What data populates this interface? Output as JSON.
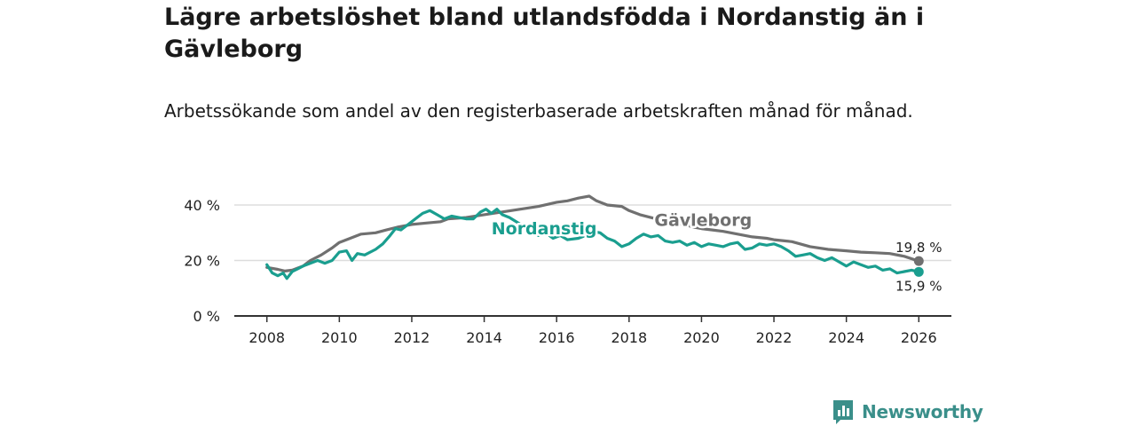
{
  "title": "Lägre arbetslöshet bland utlandsfödda i Nordanstig än i Gävleborg",
  "subtitle": "Arbetssökande som andel av den registerbaserade arbetskraften månad för månad.",
  "brand": "Newsworthy",
  "colors": {
    "nordanstig": "#1a9e8f",
    "gavleborg": "#707070",
    "axis": "#333333",
    "grid": "#dddddd",
    "brand": "#3a8f8a"
  },
  "chart_data": {
    "type": "line",
    "title": "Lägre arbetslöshet bland utlandsfödda i Nordanstig än i Gävleborg",
    "subtitle": "Arbetssökande som andel av den registerbaserade arbetskraften månad för månad.",
    "xlabel": "",
    "ylabel": "",
    "xlim": [
      2007.1,
      2026.9
    ],
    "ylim": [
      0,
      40
    ],
    "y_ticks": [
      0,
      20,
      40
    ],
    "y_tick_labels": [
      "0 %",
      "20 %",
      "40 %"
    ],
    "x_ticks": [
      2008,
      2010,
      2012,
      2014,
      2016,
      2018,
      2020,
      2022,
      2024,
      2026
    ],
    "x_tick_labels": [
      "2008",
      "2010",
      "2012",
      "2014",
      "2016",
      "2018",
      "2020",
      "2022",
      "2024",
      "2026"
    ],
    "grid": true,
    "series": [
      {
        "name": "Gävleborg",
        "color": "#707070",
        "end_label": "19,8 %",
        "points": [
          [
            2008,
            17.5
          ],
          [
            2008.3,
            16.8
          ],
          [
            2008.5,
            16.2
          ],
          [
            2008.7,
            16.5
          ],
          [
            2009,
            18
          ],
          [
            2009.2,
            20
          ],
          [
            2009.5,
            22
          ],
          [
            2009.8,
            24.5
          ],
          [
            2010,
            26.5
          ],
          [
            2010.3,
            28
          ],
          [
            2010.6,
            29.5
          ],
          [
            2011,
            30
          ],
          [
            2011.3,
            31
          ],
          [
            2011.6,
            32
          ],
          [
            2012,
            33
          ],
          [
            2012.4,
            33.5
          ],
          [
            2012.8,
            34
          ],
          [
            2013,
            35
          ],
          [
            2013.5,
            35.5
          ],
          [
            2014,
            36.5
          ],
          [
            2014.5,
            37.5
          ],
          [
            2015,
            38.5
          ],
          [
            2015.5,
            39.5
          ],
          [
            2016,
            41
          ],
          [
            2016.3,
            41.5
          ],
          [
            2016.6,
            42.5
          ],
          [
            2016.9,
            43.2
          ],
          [
            2017.1,
            41.5
          ],
          [
            2017.4,
            40
          ],
          [
            2017.8,
            39.5
          ],
          [
            2018,
            38
          ],
          [
            2018.3,
            36.5
          ],
          [
            2018.6,
            35.5
          ],
          [
            2018.9,
            34.5
          ],
          [
            2019.2,
            33.5
          ],
          [
            2019.5,
            33
          ],
          [
            2019.8,
            32
          ],
          [
            2020,
            31.5
          ],
          [
            2020.3,
            31
          ],
          [
            2020.6,
            30.5
          ],
          [
            2021,
            29.5
          ],
          [
            2021.4,
            28.5
          ],
          [
            2021.8,
            28
          ],
          [
            2022,
            27.5
          ],
          [
            2022.5,
            26.8
          ],
          [
            2023,
            25
          ],
          [
            2023.5,
            24
          ],
          [
            2024,
            23.5
          ],
          [
            2024.4,
            23
          ],
          [
            2024.8,
            22.8
          ],
          [
            2025.2,
            22.5
          ],
          [
            2025.6,
            21.5
          ],
          [
            2025.9,
            20.2
          ],
          [
            2026,
            19.8
          ]
        ]
      },
      {
        "name": "Nordanstig",
        "color": "#1a9e8f",
        "end_label": "15,9 %",
        "points": [
          [
            2008,
            18.5
          ],
          [
            2008.15,
            15.5
          ],
          [
            2008.3,
            14.5
          ],
          [
            2008.45,
            15.5
          ],
          [
            2008.55,
            13.5
          ],
          [
            2008.7,
            16
          ],
          [
            2008.85,
            17
          ],
          [
            2009,
            18
          ],
          [
            2009.2,
            19
          ],
          [
            2009.4,
            20
          ],
          [
            2009.6,
            19
          ],
          [
            2009.8,
            20
          ],
          [
            2010,
            23
          ],
          [
            2010.2,
            23.5
          ],
          [
            2010.35,
            20
          ],
          [
            2010.5,
            22.5
          ],
          [
            2010.7,
            22
          ],
          [
            2011,
            24
          ],
          [
            2011.2,
            26
          ],
          [
            2011.4,
            29
          ],
          [
            2011.55,
            31.5
          ],
          [
            2011.7,
            31
          ],
          [
            2011.9,
            33
          ],
          [
            2012.1,
            35
          ],
          [
            2012.3,
            37
          ],
          [
            2012.5,
            38
          ],
          [
            2012.7,
            36.5
          ],
          [
            2012.9,
            35
          ],
          [
            2013.1,
            36
          ],
          [
            2013.3,
            35.5
          ],
          [
            2013.5,
            35
          ],
          [
            2013.7,
            35
          ],
          [
            2013.9,
            37.5
          ],
          [
            2014.05,
            38.5
          ],
          [
            2014.2,
            37
          ],
          [
            2014.35,
            38.5
          ],
          [
            2014.5,
            36.5
          ],
          [
            2014.7,
            35.5
          ],
          [
            2015.5,
            29
          ],
          [
            2015.7,
            30
          ],
          [
            2015.9,
            28
          ],
          [
            2016.1,
            29
          ],
          [
            2016.3,
            27.5
          ],
          [
            2016.6,
            28
          ],
          [
            2016.8,
            29
          ],
          [
            2017,
            30.5
          ],
          [
            2017.2,
            30
          ],
          [
            2017.4,
            28
          ],
          [
            2017.6,
            27
          ],
          [
            2017.8,
            25
          ],
          [
            2018,
            26
          ],
          [
            2018.2,
            28
          ],
          [
            2018.4,
            29.5
          ],
          [
            2018.6,
            28.5
          ],
          [
            2018.8,
            29
          ],
          [
            2019,
            27
          ],
          [
            2019.2,
            26.5
          ],
          [
            2019.4,
            27
          ],
          [
            2019.6,
            25.5
          ],
          [
            2019.8,
            26.5
          ],
          [
            2020,
            25
          ],
          [
            2020.2,
            26
          ],
          [
            2020.4,
            25.5
          ],
          [
            2020.6,
            25
          ],
          [
            2020.8,
            26
          ],
          [
            2021,
            26.5
          ],
          [
            2021.2,
            24
          ],
          [
            2021.4,
            24.5
          ],
          [
            2021.6,
            26
          ],
          [
            2021.8,
            25.5
          ],
          [
            2022,
            26
          ],
          [
            2022.2,
            25
          ],
          [
            2022.4,
            23.5
          ],
          [
            2022.6,
            21.5
          ],
          [
            2022.8,
            22
          ],
          [
            2023,
            22.5
          ],
          [
            2023.2,
            21
          ],
          [
            2023.4,
            20
          ],
          [
            2023.6,
            21
          ],
          [
            2023.8,
            19.5
          ],
          [
            2024,
            18
          ],
          [
            2024.2,
            19.5
          ],
          [
            2024.4,
            18.5
          ],
          [
            2024.6,
            17.5
          ],
          [
            2024.8,
            18
          ],
          [
            2025,
            16.5
          ],
          [
            2025.2,
            17
          ],
          [
            2025.4,
            15.5
          ],
          [
            2025.6,
            16
          ],
          [
            2025.8,
            16.5
          ],
          [
            2026,
            15.9
          ]
        ]
      }
    ],
    "series_labels": [
      {
        "name": "Gävleborg",
        "x": 2018.7,
        "y": 32.5
      },
      {
        "name": "Nordanstig",
        "x": 2014.2,
        "y": 29.5
      }
    ]
  }
}
